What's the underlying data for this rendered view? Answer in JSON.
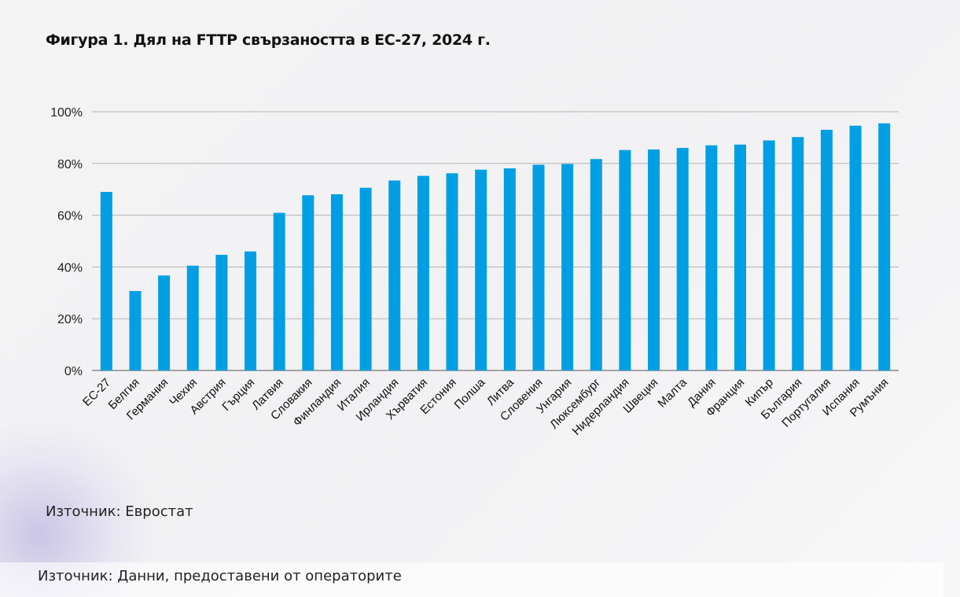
{
  "title": "Фигура 1. Дял на FTTP свързаността в ЕС-27, 2024 г.",
  "source_chart": "Източник: Евростат",
  "source_page": "Източник: Данни, предоставени от операторите",
  "chart_data": {
    "type": "bar",
    "title": "Фигура 1. Дял на FTTP свързаността в ЕС-27, 2024 г.",
    "xlabel": "",
    "ylabel": "",
    "ylim": [
      0,
      100
    ],
    "yticks": [
      "0%",
      "20%",
      "40%",
      "60%",
      "80%",
      "100%"
    ],
    "grid": true,
    "bar_color": "#009fe3",
    "categories": [
      "ЕС-27",
      "Белгия",
      "Германия",
      "Чехия",
      "Австрия",
      "Гърция",
      "Латвия",
      "Словакия",
      "Финландия",
      "Италия",
      "Ирландия",
      "Хърватия",
      "Естония",
      "Полша",
      "Литва",
      "Словения",
      "Унгария",
      "Люксембург",
      "Нидерландия",
      "Швеция",
      "Малта",
      "Дания",
      "Франция",
      "Кипър",
      "България",
      "Португалия",
      "Испания",
      "Румъния"
    ],
    "values": [
      69.0,
      30.7,
      36.7,
      40.5,
      44.7,
      46.0,
      60.9,
      67.7,
      68.1,
      70.6,
      73.4,
      75.2,
      76.2,
      77.6,
      78.1,
      79.5,
      79.8,
      81.7,
      85.2,
      85.4,
      86.0,
      87.0,
      87.3,
      88.9,
      90.2,
      93.0,
      94.6,
      95.5
    ]
  }
}
